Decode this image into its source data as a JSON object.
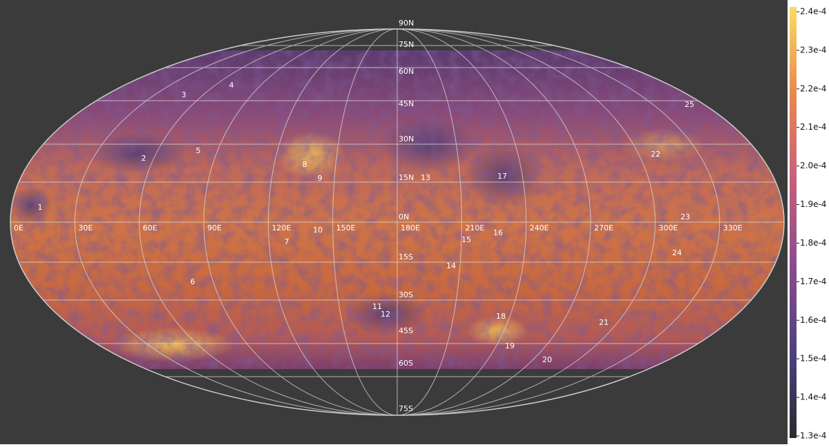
{
  "latitude_labels": [
    "90N",
    "75N",
    "60N",
    "45N",
    "30N",
    "15N",
    "0N",
    "15S",
    "30S",
    "45S",
    "60S",
    "75S"
  ],
  "longitude_labels": [
    "0E",
    "30E",
    "60E",
    "90E",
    "120E",
    "150E",
    "180E",
    "210E",
    "240E",
    "270E",
    "300E",
    "330E"
  ],
  "features": [
    "1",
    "2",
    "3",
    "4",
    "5",
    "6",
    "7",
    "8",
    "9",
    "10",
    "11",
    "12",
    "13",
    "14",
    "15",
    "16",
    "17",
    "18",
    "19",
    "20",
    "21",
    "22",
    "23",
    "24",
    "25"
  ],
  "colorbar": {
    "lim": [
      0.00013,
      0.00024
    ],
    "ticks": [
      {
        "value": 0.00013,
        "label": "1.3e-4"
      },
      {
        "value": 0.00014,
        "label": "1.4e-4"
      },
      {
        "value": 0.00015,
        "label": "1.5e-4"
      },
      {
        "value": 0.00016,
        "label": "1.6e-4"
      },
      {
        "value": 0.00017,
        "label": "1.7e-4"
      },
      {
        "value": 0.00018,
        "label": "1.8e-4"
      },
      {
        "value": 0.00019,
        "label": "1.9e-4"
      },
      {
        "value": 0.0002,
        "label": "2.0e-4"
      },
      {
        "value": 0.00021,
        "label": "2.1e-4"
      },
      {
        "value": 0.00022,
        "label": "2.2e-4"
      },
      {
        "value": 0.00023,
        "label": "2.3e-4"
      },
      {
        "value": 0.00024,
        "label": "2.4e-4"
      }
    ]
  }
}
